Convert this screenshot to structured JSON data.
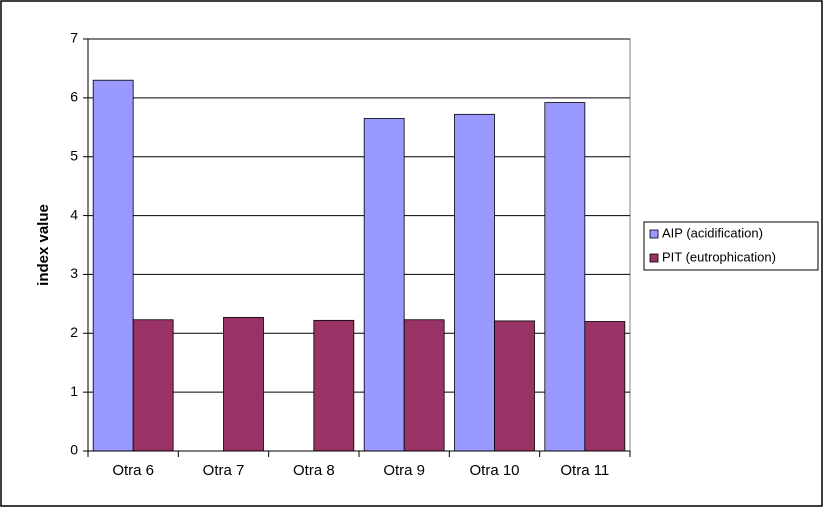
{
  "chart_data": {
    "type": "bar",
    "y_label": "index value",
    "categories": [
      "Otra 6",
      "Otra 7",
      "Otra 8",
      "Otra 9",
      "Otra 10",
      "Otra 11"
    ],
    "series": [
      {
        "name": "AIP (acidification)",
        "color": "#9999ff",
        "values": [
          6.3,
          null,
          null,
          5.65,
          5.72,
          5.92
        ]
      },
      {
        "name": "PIT (eutrophication)",
        "color": "#993366",
        "values": [
          2.23,
          2.27,
          2.22,
          2.23,
          2.21,
          2.2
        ]
      }
    ],
    "ylim": [
      0,
      7
    ],
    "yticks": [
      0,
      1,
      2,
      3,
      4,
      5,
      6,
      7
    ],
    "grid": true,
    "legend": "right"
  }
}
